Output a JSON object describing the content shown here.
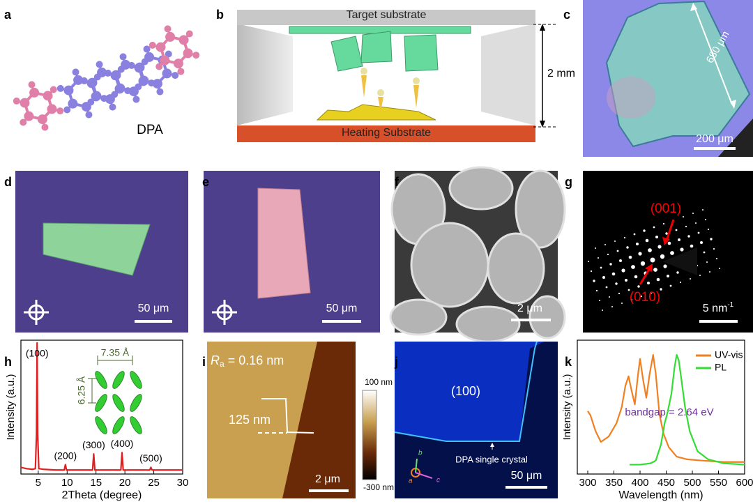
{
  "panels": {
    "a": {
      "label": "a",
      "caption": "DPA"
    },
    "b": {
      "label": "b",
      "top": "Target substrate",
      "bottom": "Heating Substrate",
      "gap": "2 mm"
    },
    "c": {
      "label": "c",
      "length": "680 μm",
      "scale": "200 μm"
    },
    "d": {
      "label": "d",
      "scale": "50 μm"
    },
    "e": {
      "label": "e",
      "scale": "50 μm"
    },
    "f": {
      "label": "f",
      "scale": "2 μm"
    },
    "g": {
      "label": "g",
      "spot1": "(001)",
      "spot2": "(010)",
      "scale": "5 nm",
      "scale_sup": "-1"
    },
    "h": {
      "label": "h"
    },
    "i": {
      "label": "i",
      "ra_symbol": "R",
      "ra_sub": "a",
      "ra_value": " = 0.16 nm",
      "step": "125 nm",
      "scale": "2 μm",
      "colorbar_max": "100 nm",
      "colorbar_min": "-300 nm"
    },
    "j": {
      "label": "j",
      "face": "(100)",
      "note": "DPA single crystal",
      "scale": "50 μm",
      "axis_a": "a",
      "axis_b": "b",
      "axis_c": "c"
    },
    "k": {
      "label": "k"
    }
  },
  "chart_data": [
    {
      "type": "line",
      "x_label": "2Theta (degree)",
      "y_label": "Intensity (a.u.)",
      "color": "#e02020",
      "x": [
        2,
        3,
        4,
        4.5,
        4.7,
        4.8,
        4.9,
        5.1,
        6,
        8,
        9.5,
        9.7,
        9.9,
        11,
        14.4,
        14.6,
        14.8,
        16,
        19.3,
        19.5,
        19.7,
        22,
        24.3,
        24.5,
        24.7,
        27,
        30
      ],
      "values": [
        5,
        4,
        3.5,
        4,
        30,
        98,
        30,
        4,
        3.5,
        3,
        3,
        7,
        3,
        3,
        3,
        15,
        3,
        3,
        3,
        16,
        3,
        3,
        3,
        5,
        3,
        3,
        3
      ],
      "xlim": [
        2,
        30
      ],
      "xticks": [
        5,
        10,
        15,
        20,
        25,
        30
      ],
      "ylim": [
        0,
        100
      ],
      "peak_labels": [
        "(100)",
        "(200)",
        "(300)",
        "(400)",
        "(500)"
      ],
      "inset_labels": [
        "7.35 Å",
        "6.25 Å"
      ]
    },
    {
      "type": "line",
      "x_label": "Wavelength (nm)",
      "y_label": "Intensity (a.u.)",
      "series": [
        {
          "name": "UV-vis",
          "color": "#f08020",
          "x": [
            300,
            305,
            315,
            325,
            340,
            355,
            365,
            372,
            378,
            384,
            390,
            396,
            400,
            406,
            412,
            418,
            425,
            430,
            437,
            445,
            455,
            470,
            490,
            520,
            560,
            600
          ],
          "values": [
            47,
            44,
            32,
            24,
            28,
            38,
            50,
            66,
            73,
            62,
            52,
            74,
            86,
            70,
            57,
            74,
            89,
            75,
            45,
            30,
            20,
            13,
            11,
            10,
            9,
            9
          ]
        },
        {
          "name": "PL",
          "color": "#33dd33",
          "x": [
            380,
            400,
            420,
            430,
            440,
            447,
            452,
            460,
            466,
            470,
            474,
            480,
            486,
            495,
            510,
            530,
            560,
            600
          ],
          "values": [
            7,
            7,
            8,
            10,
            22,
            38,
            45,
            60,
            80,
            89,
            85,
            68,
            50,
            32,
            17,
            11,
            8,
            7
          ]
        }
      ],
      "xlim": [
        280,
        600
      ],
      "xticks": [
        300,
        350,
        400,
        450,
        500,
        550,
        600
      ],
      "ylim": [
        0,
        100
      ],
      "annotation": "bandgap = 2.64 eV",
      "legend": "upper right"
    }
  ]
}
